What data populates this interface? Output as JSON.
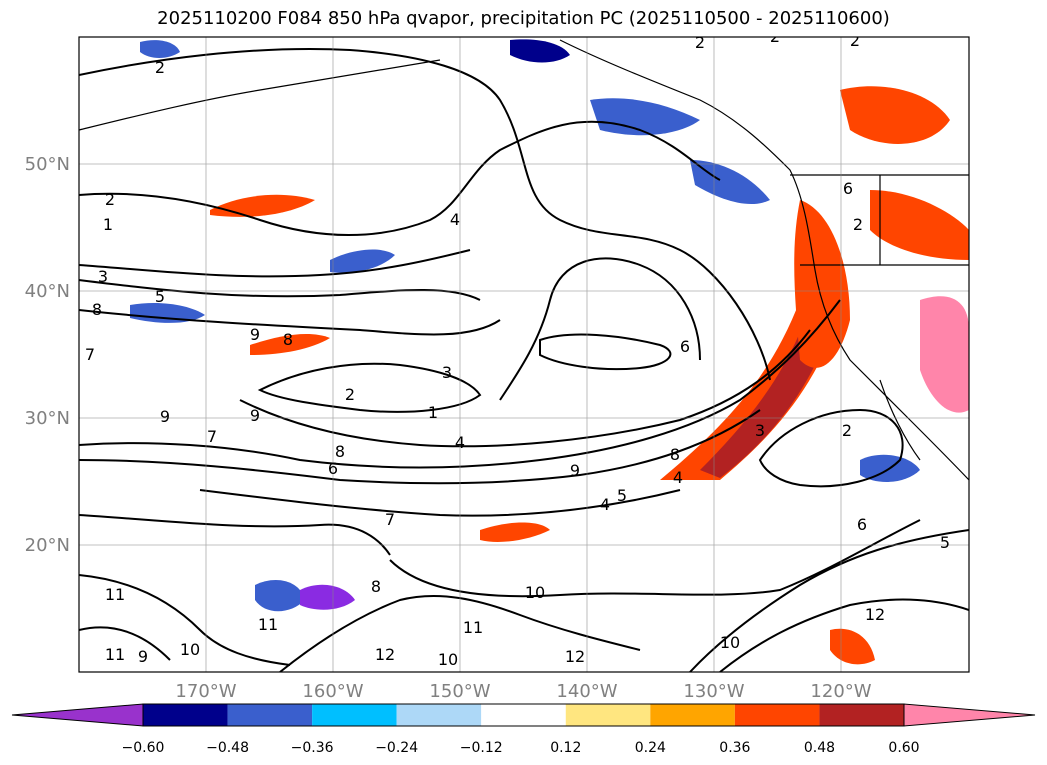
{
  "title": "2025110200 F084 850 hPa qvapor, precipitation PC (2025110500 - 2025110600)",
  "latitude_labels": [
    "50°N",
    "40°N",
    "30°N",
    "20°N"
  ],
  "longitude_labels": [
    "170°W",
    "160°W",
    "150°W",
    "140°W",
    "130°W",
    "120°W"
  ],
  "colorbar": {
    "colors": [
      "#8a2be2",
      "#00008b",
      "#3a5fcd",
      "#00bfff",
      "#add8f7",
      "#ffffff",
      "#ffe680",
      "#ffa500",
      "#ff4500",
      "#b22222",
      "#ff85aa"
    ],
    "extend_low_color": "#9932cc",
    "extend_high_color": "#ff85aa",
    "tick_labels": [
      "−0.60",
      "−0.48",
      "−0.36",
      "−0.24",
      "−0.12",
      "0.12",
      "0.24",
      "0.36",
      "0.48",
      "0.60"
    ]
  },
  "contour_labels": [
    "2",
    "2",
    "2",
    "2",
    "2",
    "1",
    "3",
    "5",
    "8",
    "7",
    "4",
    "9",
    "8",
    "3",
    "2",
    "1",
    "4",
    "9",
    "7",
    "8",
    "6",
    "9",
    "9",
    "5",
    "4",
    "8",
    "3",
    "6",
    "6",
    "2",
    "7",
    "8",
    "10",
    "11",
    "11",
    "10",
    "11",
    "12",
    "10",
    "12",
    "12",
    "11",
    "9",
    "10",
    "6",
    "5",
    "2",
    "4"
  ]
}
